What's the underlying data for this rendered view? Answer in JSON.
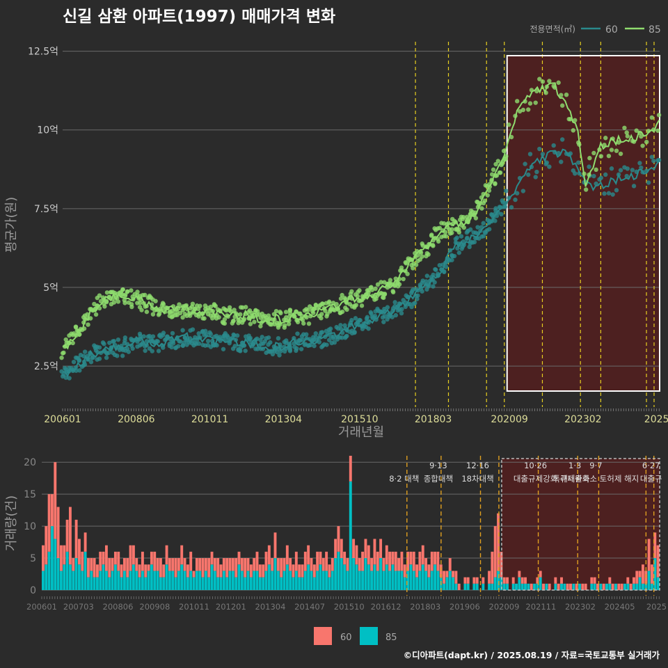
{
  "title": "신길 삼환 아파트(1997) 매매가격 변화",
  "credit": "©디아파트(dapt.kr) / 2025.08.19 / 자료=국토교통부 실거래가",
  "colors": {
    "background": "#2b2b2b",
    "price_60": "#2a8a8c",
    "price_85": "#8fdc6e",
    "vol_60": "#f8766d",
    "vol_85": "#00bfc4",
    "policy_line": "#e8d020",
    "highlight_fill": "#5a1e1e",
    "grid": "#6a6a6a",
    "axis_text": "#cccccc",
    "tick_text_light": "#dddd99"
  },
  "top_legend": {
    "title": "전용면적(㎡)",
    "items": [
      {
        "label": "60"
      },
      {
        "label": "85"
      }
    ]
  },
  "bottom_legend": {
    "items": [
      {
        "label": "60"
      },
      {
        "label": "85"
      }
    ]
  },
  "chart_data": [
    {
      "type": "line",
      "name": "price_trend",
      "xlabel": "거래년월",
      "ylabel": "평균가(원)",
      "x_range": [
        "2006-01",
        "2025-08"
      ],
      "ylim": [
        1.2,
        12.8
      ],
      "y_unit": "억",
      "y_ticks": [
        {
          "value": 2.5,
          "label": "2.5억"
        },
        {
          "value": 5,
          "label": "5억"
        },
        {
          "value": 7.5,
          "label": "7.5억"
        },
        {
          "value": 10,
          "label": "10억"
        },
        {
          "value": 12.5,
          "label": "12.5억"
        }
      ],
      "x_ticks": [
        "200601",
        "200806",
        "201011",
        "201304",
        "201510",
        "201803",
        "202009",
        "202302",
        "2025"
      ],
      "grid": true,
      "legend_position": "top-right",
      "series": [
        {
          "name": "60",
          "x": [
            "2006-01",
            "2006-06",
            "2007-01",
            "2007-06",
            "2008-01",
            "2008-06",
            "2009-01",
            "2009-06",
            "2010-01",
            "2010-06",
            "2011-01",
            "2011-06",
            "2012-01",
            "2012-06",
            "2013-01",
            "2013-06",
            "2014-01",
            "2014-06",
            "2015-01",
            "2015-06",
            "2016-01",
            "2016-06",
            "2017-01",
            "2017-06",
            "2018-01",
            "2018-06",
            "2018-09",
            "2018-12",
            "2019-06",
            "2019-12",
            "2020-06",
            "2020-12",
            "2021-06",
            "2021-12",
            "2022-06",
            "2022-12",
            "2023-06",
            "2023-12",
            "2024-06",
            "2024-12",
            "2025-06",
            "2025-08"
          ],
          "y": [
            2.2,
            2.5,
            2.9,
            3.0,
            3.1,
            3.3,
            3.2,
            3.3,
            3.4,
            3.4,
            3.3,
            3.3,
            3.2,
            3.2,
            3.1,
            3.2,
            3.3,
            3.3,
            3.5,
            3.7,
            3.9,
            4.1,
            4.3,
            4.6,
            5.1,
            5.5,
            6.0,
            6.3,
            6.6,
            6.9,
            7.5,
            8.2,
            8.9,
            9.2,
            9.3,
            8.8,
            8.2,
            8.3,
            8.5,
            8.6,
            8.8,
            9.0
          ]
        },
        {
          "name": "85",
          "x": [
            "2006-01",
            "2006-06",
            "2007-01",
            "2007-06",
            "2008-01",
            "2008-06",
            "2009-01",
            "2009-06",
            "2010-01",
            "2010-06",
            "2011-01",
            "2011-06",
            "2012-01",
            "2012-06",
            "2013-01",
            "2013-06",
            "2014-01",
            "2014-06",
            "2015-01",
            "2015-06",
            "2016-01",
            "2016-06",
            "2017-01",
            "2017-06",
            "2018-01",
            "2018-06",
            "2018-09",
            "2019-01",
            "2019-06",
            "2019-12",
            "2020-06",
            "2020-12",
            "2021-06",
            "2021-09",
            "2022-03",
            "2022-12",
            "2023-03",
            "2023-09",
            "2024-01",
            "2024-06",
            "2024-12",
            "2025-06",
            "2025-08"
          ],
          "y": [
            3.0,
            3.5,
            4.3,
            4.6,
            4.7,
            4.6,
            4.4,
            4.3,
            4.3,
            4.2,
            4.2,
            4.1,
            4.1,
            4.0,
            4.0,
            4.0,
            4.1,
            4.2,
            4.4,
            4.6,
            4.7,
            4.9,
            5.2,
            5.8,
            6.3,
            6.8,
            6.9,
            7.0,
            7.2,
            8.0,
            9.0,
            10.6,
            11.2,
            11.3,
            11.4,
            10.0,
            8.3,
            9.5,
            9.6,
            9.7,
            9.8,
            10.0,
            10.3
          ]
        }
      ]
    },
    {
      "type": "bar",
      "name": "volume",
      "ylabel": "거래량(건)",
      "ylim": [
        0,
        21
      ],
      "y_ticks": [
        0,
        5,
        10,
        15,
        20
      ],
      "x_ticks": [
        "200601",
        "200703",
        "200806",
        "200908",
        "201011",
        "201201",
        "201304",
        "201407",
        "201510",
        "201612",
        "201803",
        "201906",
        "202009",
        "202111",
        "202302",
        "202405",
        "2025"
      ],
      "stacked": true,
      "series": [
        {
          "name": "85",
          "values": [
            3,
            4,
            6,
            10,
            8,
            5,
            3,
            4,
            6,
            4,
            3,
            5,
            4,
            3,
            6,
            2,
            3,
            2,
            2,
            3,
            4,
            3,
            2,
            3,
            4,
            3,
            2,
            3,
            2,
            3,
            4,
            3,
            2,
            3,
            2,
            3,
            4,
            3,
            3,
            2,
            2,
            4,
            3,
            3,
            2,
            3,
            4,
            3,
            2,
            3,
            2,
            3,
            3,
            2,
            3,
            2,
            4,
            3,
            2,
            2,
            3,
            2,
            3,
            3,
            2,
            4,
            3,
            2,
            3,
            2,
            3,
            3,
            2,
            2,
            3,
            4,
            3,
            5,
            3,
            2,
            3,
            4,
            3,
            2,
            3,
            2,
            2,
            3,
            4,
            3,
            2,
            3,
            4,
            3,
            3,
            2,
            3,
            5,
            6,
            5,
            4,
            3,
            17,
            5,
            4,
            3,
            3,
            5,
            4,
            3,
            4,
            3,
            5,
            3,
            4,
            3,
            4,
            3,
            3,
            3,
            2,
            3,
            4,
            3,
            2,
            3,
            4,
            3,
            2,
            3,
            4,
            3,
            2,
            1,
            2,
            3,
            2,
            1,
            0,
            0,
            1,
            1,
            0,
            1,
            1,
            0,
            1,
            0,
            1,
            1,
            2,
            3,
            2,
            1,
            1,
            0,
            1,
            1,
            2,
            1,
            1,
            1,
            0,
            1,
            1,
            2,
            0,
            1,
            0,
            0,
            1,
            0,
            1,
            1,
            0,
            0,
            1,
            0,
            1,
            0,
            0,
            0,
            1,
            1,
            0,
            1,
            0,
            1,
            1,
            0,
            1,
            0,
            0,
            1,
            1,
            0,
            1,
            1,
            2,
            1,
            1,
            3,
            1,
            5,
            2
          ]
        },
        {
          "name": "60",
          "values": [
            4,
            6,
            9,
            5,
            12,
            8,
            4,
            3,
            5,
            9,
            2,
            6,
            4,
            3,
            3,
            3,
            2,
            3,
            2,
            3,
            2,
            4,
            3,
            2,
            2,
            3,
            2,
            2,
            3,
            4,
            3,
            2,
            2,
            3,
            2,
            1,
            2,
            3,
            2,
            3,
            2,
            3,
            2,
            2,
            3,
            2,
            3,
            2,
            2,
            3,
            1,
            2,
            2,
            3,
            2,
            3,
            2,
            2,
            3,
            2,
            2,
            3,
            2,
            2,
            3,
            2,
            2,
            3,
            2,
            2,
            2,
            3,
            2,
            2,
            3,
            3,
            2,
            4,
            2,
            3,
            2,
            3,
            2,
            2,
            3,
            2,
            2,
            3,
            3,
            2,
            2,
            3,
            2,
            2,
            3,
            2,
            2,
            3,
            4,
            3,
            2,
            2,
            4,
            3,
            3,
            2,
            3,
            3,
            3,
            2,
            4,
            3,
            3,
            2,
            3,
            3,
            2,
            3,
            2,
            3,
            2,
            3,
            2,
            3,
            2,
            3,
            3,
            2,
            2,
            3,
            2,
            3,
            2,
            2,
            1,
            2,
            1,
            2,
            1,
            0,
            1,
            1,
            0,
            1,
            1,
            0,
            1,
            0,
            2,
            5,
            8,
            9,
            4,
            1,
            1,
            0,
            1,
            0,
            1,
            1,
            1,
            0,
            1,
            0,
            1,
            1,
            1,
            0,
            1,
            0,
            1,
            1,
            1,
            0,
            1,
            1,
            0,
            1,
            0,
            1,
            1,
            0,
            1,
            1,
            1,
            0,
            1,
            0,
            1,
            1,
            0,
            1,
            1,
            0,
            1,
            1,
            1,
            2,
            1,
            3,
            2,
            5,
            3,
            4,
            5
          ]
        }
      ]
    }
  ],
  "policies": [
    {
      "date": "2017-08",
      "label": "8·2 대책",
      "date_label": ""
    },
    {
      "date": "2018-09",
      "label": "종합대책",
      "date_label": "9·13"
    },
    {
      "date": "2019-12",
      "label": "18차대책",
      "date_label": "12·16"
    },
    {
      "date": "2020-07",
      "label": "",
      "date_label": ""
    },
    {
      "date": "2021-10",
      "label": "대출규제강화",
      "date_label": "10·26"
    },
    {
      "date": "2023-01",
      "label": "규제완화",
      "date_label": "1·3"
    },
    {
      "date": "2023-09",
      "label": "특례대출축소 토허제 해지",
      "date_label": "9·7"
    },
    {
      "date": "2025-03",
      "label": "",
      "date_label": ""
    },
    {
      "date": "2025-06",
      "label": "대출규",
      "date_label": "6·27"
    }
  ],
  "highlight": {
    "start": "2020-07",
    "end": "2025-08"
  }
}
